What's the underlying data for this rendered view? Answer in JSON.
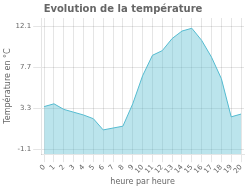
{
  "chart_data": {
    "type": "area",
    "title": "Evolution de la température",
    "xlabel": "heure par heure",
    "ylabel": "Température en °C",
    "x": [
      0,
      1,
      2,
      3,
      4,
      5,
      6,
      7,
      8,
      9,
      10,
      11,
      12,
      13,
      14,
      15,
      16,
      17,
      18,
      19,
      20
    ],
    "values": [
      3.5,
      3.8,
      3.2,
      2.9,
      2.6,
      2.2,
      1.0,
      1.2,
      1.4,
      3.8,
      6.8,
      9.0,
      9.5,
      10.8,
      11.6,
      11.9,
      10.6,
      8.8,
      6.5,
      2.4,
      2.7
    ],
    "color": "#55bbd0",
    "xlim": [
      -0.3,
      20.3
    ],
    "xticks": [
      0,
      1,
      2,
      3,
      4,
      5,
      6,
      7,
      8,
      9,
      10,
      11,
      12,
      13,
      14,
      15,
      16,
      17,
      18,
      19,
      20
    ],
    "ylim": [
      -1.6,
      13.0
    ],
    "yticks": [
      -1.1,
      3.3,
      7.7,
      12.1
    ],
    "grid": true
  }
}
